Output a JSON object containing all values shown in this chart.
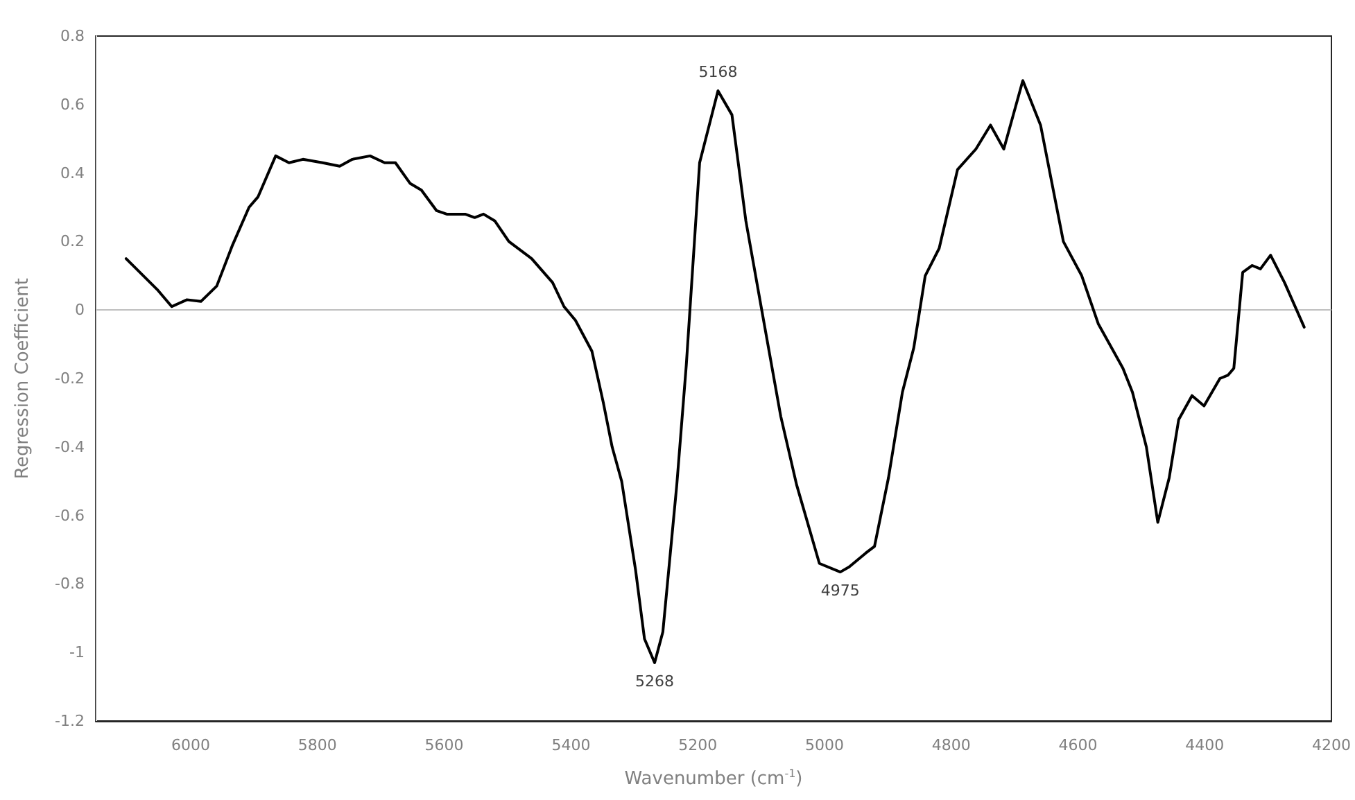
{
  "chart_data": {
    "type": "line",
    "xlabel": "Wavenumber (cm$^{-1}$)",
    "ylabel": "Regression Coefficient",
    "x": [
      6102,
      6053,
      6030,
      6006,
      5984,
      5959,
      5934,
      5908,
      5894,
      5866,
      5845,
      5823,
      5792,
      5765,
      5745,
      5717,
      5694,
      5677,
      5654,
      5636,
      5612,
      5596,
      5567,
      5552,
      5538,
      5520,
      5498,
      5462,
      5429,
      5411,
      5393,
      5367,
      5349,
      5335,
      5320,
      5298,
      5284,
      5268,
      5255,
      5233,
      5218,
      5197,
      5168,
      5146,
      5124,
      5099,
      5069,
      5044,
      5008,
      4975,
      4961,
      4935,
      4921,
      4899,
      4877,
      4859,
      4841,
      4819,
      4790,
      4761,
      4738,
      4717,
      4687,
      4659,
      4623,
      4594,
      4568,
      4529,
      4514,
      4492,
      4474,
      4456,
      4441,
      4420,
      4401,
      4376,
      4363,
      4354,
      4340,
      4325,
      4312,
      4296,
      4274,
      4243
    ],
    "series": [
      {
        "color": "#000000",
        "values": [
          0.15,
          0.06,
          0.01,
          0.03,
          0.025,
          0.07,
          0.19,
          0.3,
          0.33,
          0.45,
          0.43,
          0.44,
          0.43,
          0.42,
          0.44,
          0.45,
          0.43,
          0.43,
          0.37,
          0.35,
          0.29,
          0.28,
          0.28,
          0.27,
          0.28,
          0.26,
          0.2,
          0.15,
          0.08,
          0.01,
          -0.03,
          -0.12,
          -0.27,
          -0.4,
          -0.5,
          -0.76,
          -0.96,
          -1.03,
          -0.94,
          -0.51,
          -0.16,
          0.43,
          0.64,
          0.57,
          0.26,
          0,
          -0.31,
          -0.51,
          -0.74,
          -0.765,
          -0.75,
          -0.71,
          -0.69,
          -0.49,
          -0.24,
          -0.11,
          0.1,
          0.18,
          0.41,
          0.47,
          0.54,
          0.47,
          0.67,
          0.54,
          0.2,
          0.1,
          -0.04,
          -0.17,
          -0.24,
          -0.4,
          -0.62,
          -0.49,
          -0.32,
          -0.25,
          -0.28,
          -0.2,
          -0.19,
          -0.17,
          0.11,
          0.13,
          0.12,
          0.16,
          0.08,
          -0.05
        ]
      }
    ],
    "xlim": [
      6150,
      4200
    ],
    "xticks": [
      6000,
      5800,
      5600,
      5400,
      5200,
      5000,
      4800,
      4600,
      4400,
      4200
    ],
    "ylim": [
      -1.2,
      0.8
    ],
    "yticks": [
      -1.2,
      -1,
      -0.8,
      -0.6,
      -0.4,
      -0.2,
      0,
      0.2,
      0.4,
      0.6,
      0.8
    ],
    "ref_lines": [
      {
        "axis": "y",
        "value": 0,
        "color": "#bfbfbf"
      }
    ],
    "annotations": [
      {
        "text": "5168",
        "x": 5168,
        "y": 0.64
      },
      {
        "text": "5268",
        "x": 5268,
        "y": -1.03
      },
      {
        "text": "4975",
        "x": 4975,
        "y": -0.765
      }
    ],
    "grid": false,
    "marker": "none",
    "line_style": "solid"
  }
}
